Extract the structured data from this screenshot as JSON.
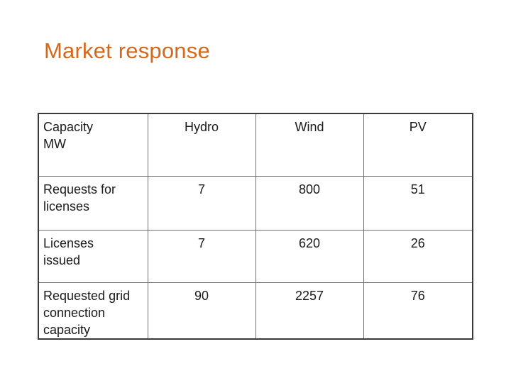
{
  "title": "Market response",
  "table": {
    "corner_label": "Capacity\n MW",
    "columns": [
      "Hydro",
      "Wind",
      "PV"
    ],
    "rows": [
      {
        "label": "Requests for\nlicenses",
        "values": [
          "7",
          "800",
          "51"
        ]
      },
      {
        "label": "Licenses\nissued",
        "values": [
          "7",
          "620",
          "26"
        ]
      },
      {
        "label": "Requested grid\nconnection\ncapacity",
        "values": [
          "90",
          "2257",
          "76"
        ]
      }
    ]
  }
}
